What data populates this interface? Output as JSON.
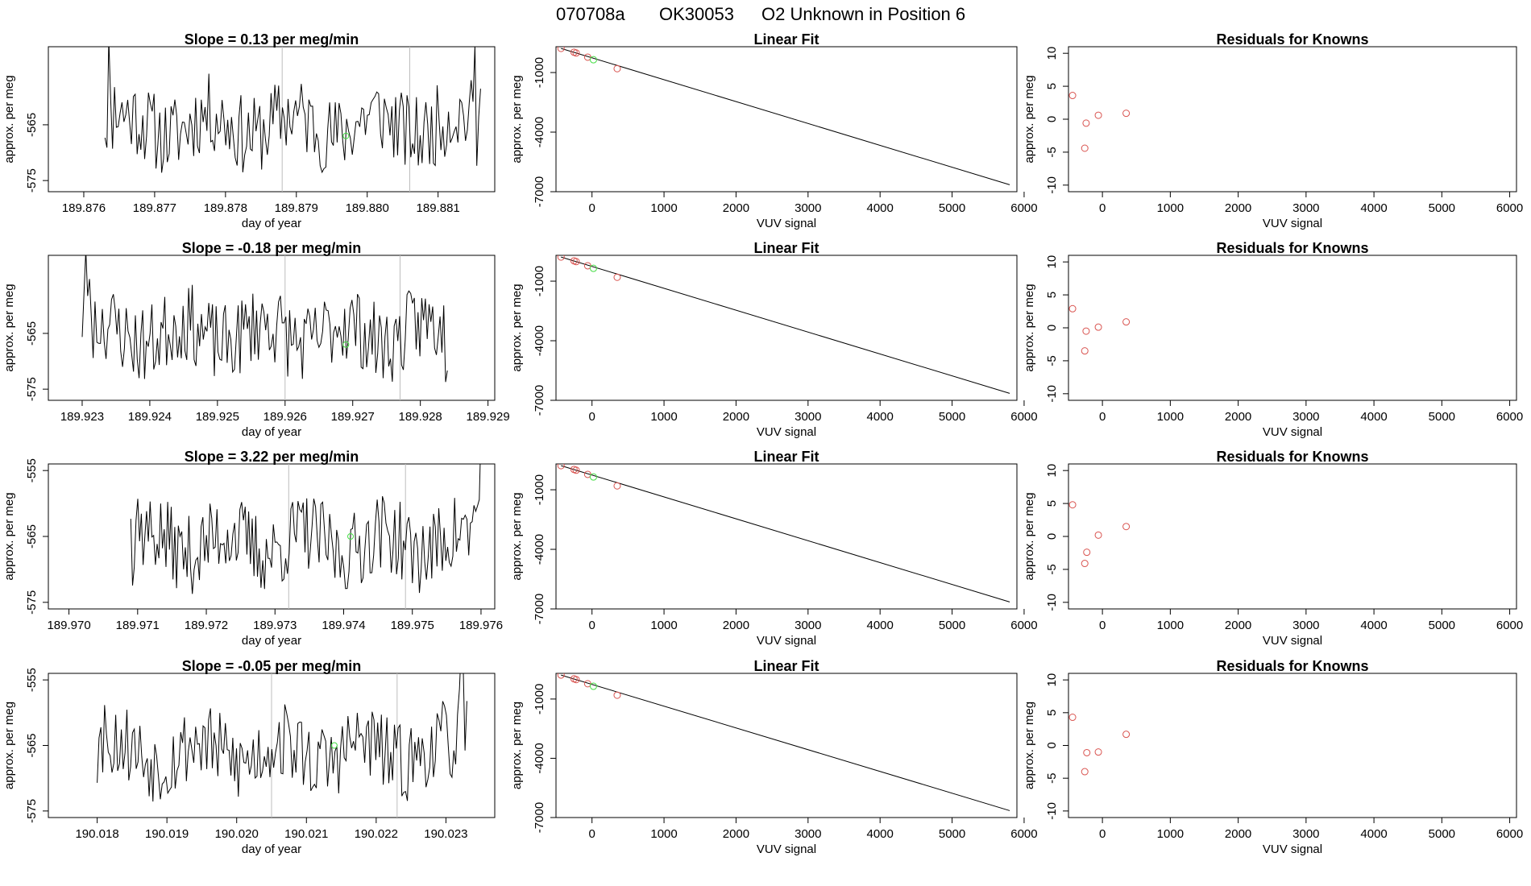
{
  "header": {
    "date": "070708a",
    "sample": "OK30053",
    "description": "O2 Unknown in Position  6"
  },
  "colors": {
    "known": "#d9534f",
    "unknown": "#44dd44",
    "line": "#000000",
    "marker": "#bdbdbd"
  },
  "chart_data": [
    {
      "type": "line",
      "title": "Slope =  0.13  per meg/min",
      "xlabel": "day of year",
      "ylabel": "approx. per meg",
      "xlim": [
        189.8755,
        189.8818
      ],
      "ylim": [
        -577,
        -551
      ],
      "xticks": [
        "189.876",
        "189.877",
        "189.878",
        "189.879",
        "189.880",
        "189.881"
      ],
      "yticks": [
        "-565",
        "-575"
      ],
      "markers": [
        189.8788,
        189.8806
      ],
      "unknown_point": {
        "x": 189.8797,
        "y": -567
      },
      "seed": 11,
      "x_range_data": [
        189.8763,
        189.8816
      ]
    },
    {
      "type": "scatter",
      "title": "Linear Fit",
      "xlabel": "VUV signal",
      "ylabel": "approx. per meg",
      "xlim": [
        -500,
        5900
      ],
      "ylim": [
        -7000,
        300
      ],
      "xticks": [
        "0",
        "1000",
        "2000",
        "3000",
        "4000",
        "5000",
        "6000"
      ],
      "yticks": [
        "-1000",
        "-4000",
        "-7000"
      ],
      "knowns": {
        "x": [
          -430,
          -250,
          -220,
          -60,
          350
        ],
        "y": [
          215,
          23,
          -15,
          -225,
          -805
        ]
      },
      "unknown": {
        "x": 20,
        "y": -355
      },
      "fit": {
        "x": [
          -430,
          5800
        ],
        "y": [
          215,
          -6650
        ]
      }
    },
    {
      "type": "scatter",
      "title": "Residuals for Knowns",
      "xlabel": "VUV signal",
      "ylabel": "approx. per meg",
      "xlim": [
        -500,
        6100
      ],
      "ylim": [
        -11,
        11
      ],
      "xticks": [
        "0",
        "1000",
        "2000",
        "3000",
        "4000",
        "5000",
        "6000"
      ],
      "yticks": [
        "10",
        "5",
        "0",
        "-5",
        "-10"
      ],
      "knowns": {
        "x": [
          -440,
          -240,
          -260,
          -60,
          350
        ],
        "y": [
          3.6,
          -0.6,
          -4.4,
          0.6,
          0.9
        ]
      }
    },
    {
      "type": "line",
      "title": "Slope =  -0.18  per meg/min",
      "xlabel": "day of year",
      "ylabel": "approx. per meg",
      "xlim": [
        189.9225,
        189.9291
      ],
      "ylim": [
        -577,
        -551
      ],
      "xticks": [
        "189.923",
        "189.924",
        "189.925",
        "189.926",
        "189.927",
        "189.928",
        "189.929"
      ],
      "yticks": [
        "-565",
        "-575"
      ],
      "markers": [
        189.926,
        189.9277
      ],
      "unknown_point": {
        "x": 189.9269,
        "y": -567
      },
      "seed": 23,
      "x_range_data": [
        189.923,
        189.9284
      ]
    },
    {
      "type": "scatter",
      "title": "Linear Fit",
      "xlabel": "VUV signal",
      "ylabel": "approx. per meg",
      "xlim": [
        -500,
        5900
      ],
      "ylim": [
        -7000,
        300
      ],
      "xticks": [
        "0",
        "1000",
        "2000",
        "3000",
        "4000",
        "5000",
        "6000"
      ],
      "yticks": [
        "-1000",
        "-4000",
        "-7000"
      ],
      "knowns": {
        "x": [
          -430,
          -250,
          -220,
          -60,
          350
        ],
        "y": [
          215,
          23,
          -15,
          -225,
          -805
        ]
      },
      "unknown": {
        "x": 20,
        "y": -355
      },
      "fit": {
        "x": [
          -430,
          5800
        ],
        "y": [
          215,
          -6650
        ]
      }
    },
    {
      "type": "scatter",
      "title": "Residuals for Knowns",
      "xlabel": "VUV signal",
      "ylabel": "approx. per meg",
      "xlim": [
        -500,
        6100
      ],
      "ylim": [
        -11,
        11
      ],
      "xticks": [
        "0",
        "1000",
        "2000",
        "3000",
        "4000",
        "5000",
        "6000"
      ],
      "yticks": [
        "10",
        "5",
        "0",
        "-5",
        "-10"
      ],
      "knowns": {
        "x": [
          -440,
          -240,
          -260,
          -60,
          350
        ],
        "y": [
          2.9,
          -0.5,
          -3.5,
          0.1,
          0.9
        ]
      }
    },
    {
      "type": "line",
      "title": "Slope =  3.22  per meg/min",
      "xlabel": "day of year",
      "ylabel": "approx. per meg",
      "xlim": [
        189.9697,
        189.9762
      ],
      "ylim": [
        -576,
        -554
      ],
      "xticks": [
        "189.970",
        "189.971",
        "189.972",
        "189.973",
        "189.974",
        "189.975",
        "189.976"
      ],
      "yticks": [
        "-555",
        "-565",
        "-575"
      ],
      "markers": [
        189.9732,
        189.9749
      ],
      "unknown_point": {
        "x": 189.9741,
        "y": -565
      },
      "seed": 37,
      "x_range_data": [
        189.9709,
        189.976
      ]
    },
    {
      "type": "scatter",
      "title": "Linear Fit",
      "xlabel": "VUV signal",
      "ylabel": "approx. per meg",
      "xlim": [
        -500,
        5900
      ],
      "ylim": [
        -7000,
        300
      ],
      "xticks": [
        "0",
        "1000",
        "2000",
        "3000",
        "4000",
        "5000",
        "6000"
      ],
      "yticks": [
        "-1000",
        "-4000",
        "-7000"
      ],
      "knowns": {
        "x": [
          -430,
          -250,
          -220,
          -60,
          350
        ],
        "y": [
          215,
          23,
          -15,
          -225,
          -805
        ]
      },
      "unknown": {
        "x": 20,
        "y": -355
      },
      "fit": {
        "x": [
          -430,
          5800
        ],
        "y": [
          215,
          -6650
        ]
      }
    },
    {
      "type": "scatter",
      "title": "Residuals for Knowns",
      "xlabel": "VUV signal",
      "ylabel": "approx. per meg",
      "xlim": [
        -500,
        6100
      ],
      "ylim": [
        -11,
        11
      ],
      "xticks": [
        "0",
        "1000",
        "2000",
        "3000",
        "4000",
        "5000",
        "6000"
      ],
      "yticks": [
        "10",
        "5",
        "0",
        "-5",
        "-10"
      ],
      "knowns": {
        "x": [
          -440,
          -230,
          -260,
          -60,
          350
        ],
        "y": [
          4.8,
          -2.4,
          -4.1,
          0.2,
          1.5
        ]
      }
    },
    {
      "type": "line",
      "title": "Slope =  -0.05  per meg/min",
      "xlabel": "day of year",
      "ylabel": "approx. per meg",
      "xlim": [
        190.0173,
        190.0237
      ],
      "ylim": [
        -576,
        -554
      ],
      "xticks": [
        "190.018",
        "190.019",
        "190.020",
        "190.021",
        "190.022",
        "190.023"
      ],
      "yticks": [
        "-555",
        "-565",
        "-575"
      ],
      "markers": [
        190.0205,
        190.0223
      ],
      "unknown_point": {
        "x": 190.0214,
        "y": -565
      },
      "seed": 53,
      "x_range_data": [
        190.018,
        190.0233
      ]
    },
    {
      "type": "scatter",
      "title": "Linear Fit",
      "xlabel": "VUV signal",
      "ylabel": "approx. per meg",
      "xlim": [
        -500,
        5900
      ],
      "ylim": [
        -7000,
        300
      ],
      "xticks": [
        "0",
        "1000",
        "2000",
        "3000",
        "4000",
        "5000",
        "6000"
      ],
      "yticks": [
        "-1000",
        "-4000",
        "-7000"
      ],
      "knowns": {
        "x": [
          -430,
          -250,
          -220,
          -60,
          350
        ],
        "y": [
          215,
          23,
          -15,
          -225,
          -805
        ]
      },
      "unknown": {
        "x": 20,
        "y": -355
      },
      "fit": {
        "x": [
          -430,
          5800
        ],
        "y": [
          215,
          -6650
        ]
      }
    },
    {
      "type": "scatter",
      "title": "Residuals for Knowns",
      "xlabel": "VUV signal",
      "ylabel": "approx. per meg",
      "xlim": [
        -500,
        6100
      ],
      "ylim": [
        -11,
        11
      ],
      "xticks": [
        "0",
        "1000",
        "2000",
        "3000",
        "4000",
        "5000",
        "6000"
      ],
      "yticks": [
        "10",
        "5",
        "0",
        "-5",
        "-10"
      ],
      "knowns": {
        "x": [
          -440,
          -230,
          -260,
          -60,
          350
        ],
        "y": [
          4.3,
          -1.1,
          -4.0,
          -1.0,
          1.7
        ]
      }
    }
  ]
}
